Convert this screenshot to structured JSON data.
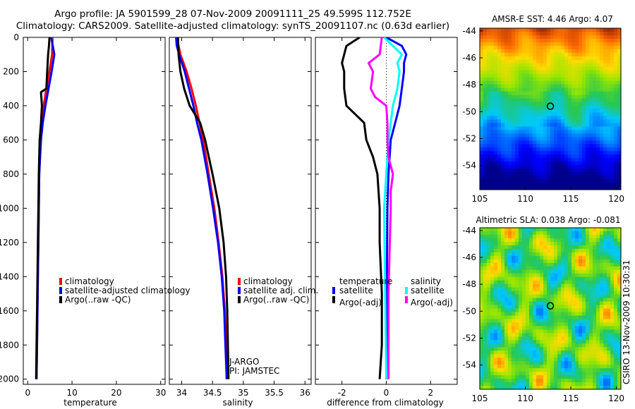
{
  "header": {
    "line1": "Argo profile: JA 5901599_28 07-Nov-2009 20091111_25 49.599S 112.752E",
    "line2": "Climatology: CARS2009. Satellite-adjusted climatology: synTS_20091107.nc (0.63d earlier)"
  },
  "side_label": "CSIRO 13-Nov-2009 10:30:31",
  "colors": {
    "black": "#000000",
    "red": "#ff0000",
    "blue": "#0000ff",
    "cyan": "#00ffff",
    "magenta": "#ff00ff"
  },
  "chart_data": [
    {
      "id": "temperature",
      "type": "line",
      "xlabel": "temperature",
      "xlim": [
        -1,
        31
      ],
      "ylim": [
        2030,
        0
      ],
      "xticks": [
        "0",
        "10",
        "20",
        "30"
      ],
      "xtick_values": [
        0,
        10,
        20,
        30
      ],
      "yticks": [
        "0",
        "200",
        "400",
        "600",
        "800",
        "1000",
        "1200",
        "1400",
        "1600",
        "1800",
        "2000"
      ],
      "ytick_values": [
        0,
        200,
        400,
        600,
        800,
        1000,
        1200,
        1400,
        1600,
        1800,
        2000
      ],
      "series": [
        {
          "name": "climatology",
          "color": "#ff0000",
          "depth": [
            0,
            100,
            200,
            300,
            400,
            500,
            600,
            800,
            1000,
            1200,
            1400,
            1600,
            1800,
            2000
          ],
          "values": [
            5.6,
            5.5,
            4.9,
            4.2,
            3.6,
            3.2,
            2.9,
            2.6,
            2.5,
            2.4,
            2.3,
            2.2,
            2.1,
            2.0
          ]
        },
        {
          "name": "satellite-adjusted climatology",
          "color": "#0000ff",
          "depth": [
            0,
            100,
            200,
            300,
            400,
            500,
            600,
            800,
            1000,
            1200,
            1400,
            1600,
            1800,
            2000
          ],
          "values": [
            5.3,
            6.0,
            5.4,
            4.7,
            4.0,
            3.4,
            3.0,
            2.6,
            2.5,
            2.4,
            2.3,
            2.2,
            2.1,
            2.0
          ]
        },
        {
          "name": "Argo(..raw -QC)",
          "color": "#000000",
          "depth": [
            0,
            50,
            100,
            200,
            300,
            320,
            400,
            500,
            600,
            800,
            1000,
            1200,
            1400,
            1600,
            1800,
            2000
          ],
          "values": [
            4.9,
            4.8,
            4.6,
            4.4,
            4.2,
            3.0,
            3.2,
            3.0,
            2.7,
            2.5,
            2.4,
            2.3,
            2.2,
            2.1,
            2.0,
            1.9
          ]
        }
      ],
      "legend": [
        "climatology",
        "satellite-adjusted climatology",
        "Argo(..raw -QC)"
      ]
    },
    {
      "id": "salinity",
      "type": "line",
      "xlabel": "salinity",
      "xlim": [
        33.8,
        36.1
      ],
      "ylim": [
        2030,
        0
      ],
      "xticks": [
        "34",
        "34.5",
        "35",
        "35.5",
        "36"
      ],
      "xtick_values": [
        34,
        34.5,
        35,
        35.5,
        36
      ],
      "series": [
        {
          "name": "climatology",
          "color": "#ff0000",
          "depth": [
            0,
            100,
            200,
            300,
            400,
            500,
            600,
            800,
            1000,
            1200,
            1400,
            1600,
            1800,
            2000
          ],
          "values": [
            33.92,
            33.98,
            34.08,
            34.16,
            34.23,
            34.29,
            34.35,
            34.44,
            34.53,
            34.6,
            34.66,
            34.7,
            34.72,
            34.73
          ]
        },
        {
          "name": "satellite adj. clim.",
          "color": "#0000ff",
          "depth": [
            0,
            50,
            100,
            200,
            300,
            400,
            500,
            600,
            800,
            1000,
            1200,
            1400,
            1600,
            1800,
            2000
          ],
          "values": [
            33.91,
            33.92,
            33.96,
            34.05,
            34.12,
            34.19,
            34.25,
            34.32,
            34.42,
            34.51,
            34.59,
            34.65,
            34.69,
            34.71,
            34.73
          ]
        },
        {
          "name": "Argo(..raw -QC)",
          "color": "#000000",
          "depth": [
            0,
            100,
            200,
            300,
            400,
            500,
            600,
            800,
            1000,
            1200,
            1400,
            1600,
            1800,
            2000
          ],
          "values": [
            33.94,
            33.95,
            33.98,
            34.04,
            34.13,
            34.3,
            34.38,
            34.5,
            34.61,
            34.68,
            34.72,
            34.74,
            34.75,
            34.76
          ]
        }
      ],
      "legend": [
        "climatology",
        "satellite adj. clim.",
        "Argo(..raw -QC)"
      ],
      "annotation": [
        "J-ARGO",
        "PI: JAMSTEC"
      ]
    },
    {
      "id": "difference",
      "type": "line",
      "xlabel": "difference from climatology",
      "xlim": [
        -3.2,
        3.2
      ],
      "ylim": [
        2030,
        0
      ],
      "xticks": [
        "-2",
        "0",
        "2"
      ],
      "xtick_values": [
        -2,
        0,
        2
      ],
      "zero_line": true,
      "series": [
        {
          "name": "temperature satellite",
          "color": "#0000ff",
          "depth": [
            0,
            50,
            100,
            150,
            200,
            300,
            400,
            500,
            600,
            800,
            1000,
            1500,
            2000
          ],
          "values": [
            0.0,
            0.7,
            0.9,
            0.8,
            0.8,
            0.7,
            0.6,
            0.4,
            0.2,
            0.1,
            0.05,
            0.02,
            0.0
          ]
        },
        {
          "name": "temperature Argo(-adj)",
          "color": "#000000",
          "depth": [
            0,
            50,
            100,
            150,
            200,
            300,
            400,
            500,
            600,
            700,
            800,
            1000,
            1200,
            1500,
            1800,
            2000
          ],
          "values": [
            -1.2,
            -1.8,
            -1.9,
            -2.0,
            -1.9,
            -1.9,
            -1.8,
            -1.0,
            -0.9,
            -0.6,
            -0.4,
            -0.3,
            -0.3,
            -0.2,
            -0.2,
            -0.3
          ]
        },
        {
          "name": "salinity satellite",
          "color": "#00ffff",
          "depth": [
            0,
            100,
            150,
            200,
            300,
            400,
            500,
            600,
            800,
            1000,
            1500,
            2000
          ],
          "values": [
            -0.1,
            0.7,
            0.5,
            0.6,
            0.5,
            0.3,
            0.2,
            0.1,
            0.0,
            -0.1,
            -0.05,
            0.0
          ]
        },
        {
          "name": "salinity Argo(-adj)",
          "color": "#ff00ff",
          "depth": [
            0,
            100,
            150,
            200,
            300,
            350,
            400,
            500,
            600,
            700,
            800,
            900,
            1000,
            1500,
            2000
          ],
          "values": [
            -0.2,
            -0.3,
            -0.8,
            -0.6,
            -0.7,
            -0.5,
            0.0,
            0.05,
            0.05,
            0.1,
            0.3,
            0.2,
            0.2,
            0.1,
            0.1
          ]
        }
      ],
      "legend_temperature_title": "temperature",
      "legend_salinity_title": "salinity",
      "legend_temperature": [
        "satellite",
        "Argo(-adj)"
      ],
      "legend_salinity": [
        "satellite",
        "Argo(-adj)"
      ]
    },
    {
      "id": "sst_map",
      "type": "heatmap",
      "title": "AMSR-E SST: 4.46 Argo: 4.07",
      "xlim": [
        105,
        120.5
      ],
      "ylim": [
        -55.8,
        -43.8
      ],
      "xticks": [
        "105",
        "110",
        "115",
        "120"
      ],
      "xtick_values": [
        105,
        110,
        115,
        120
      ],
      "yticks": [
        "-44",
        "-46",
        "-48",
        "-50",
        "-52",
        "-54"
      ],
      "ytick_values": [
        -44,
        -46,
        -48,
        -50,
        -52,
        -54
      ],
      "marker": {
        "lon": 112.752,
        "lat": -49.599
      }
    },
    {
      "id": "sla_map",
      "type": "heatmap",
      "title": "Altimetric SLA: 0.038 Argo: -0.081",
      "xlim": [
        105,
        120.5
      ],
      "ylim": [
        -55.8,
        -43.8
      ],
      "xticks": [
        "105",
        "110",
        "115",
        "120"
      ],
      "xtick_values": [
        105,
        110,
        115,
        120
      ],
      "yticks": [
        "-44",
        "-46",
        "-48",
        "-50",
        "-52",
        "-54"
      ],
      "ytick_values": [
        -44,
        -46,
        -48,
        -50,
        -52,
        -54
      ],
      "marker": {
        "lon": 112.752,
        "lat": -49.599
      }
    }
  ]
}
